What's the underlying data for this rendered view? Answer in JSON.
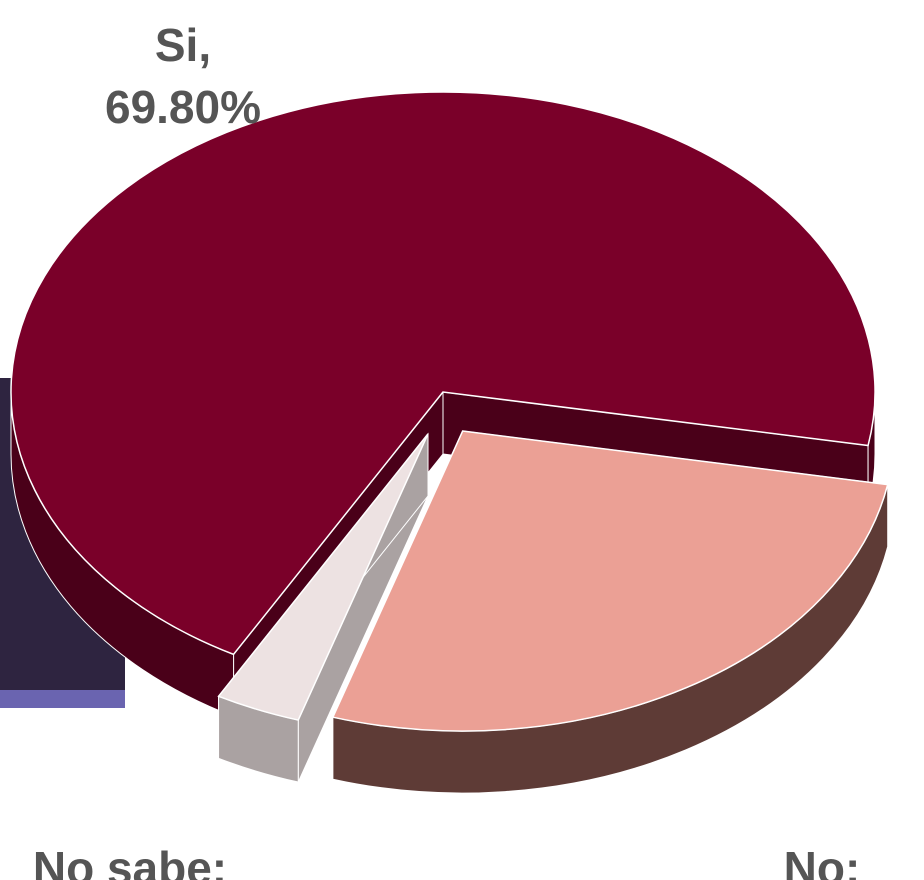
{
  "chart_data": {
    "type": "pie",
    "categories": [
      "Si,",
      "No:",
      "No sabe:"
    ],
    "values": [
      69.8,
      27,
      3.2
    ],
    "value_labels": [
      "69.80%",
      null,
      null
    ],
    "colors": [
      "#7a0029",
      "#eba095",
      "#ede2e2"
    ],
    "side_colors": [
      "#4a0019",
      "#5e3b36",
      "#aaa2a2"
    ],
    "exploded": [
      false,
      true,
      true
    ]
  }
}
